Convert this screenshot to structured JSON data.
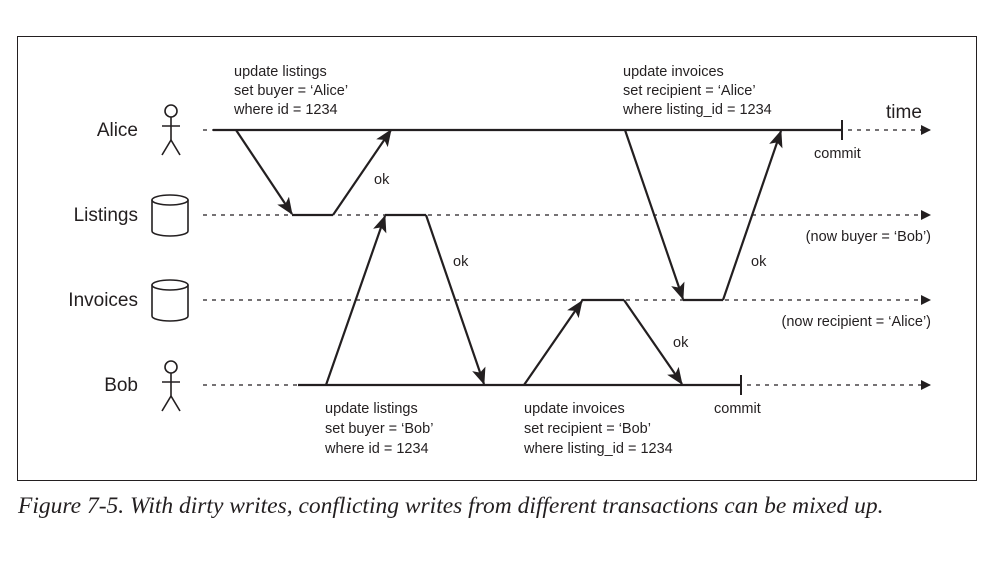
{
  "actors": {
    "alice": "Alice",
    "listings": "Listings",
    "invoices": "Invoices",
    "bob": "Bob"
  },
  "time_label": "time",
  "alice_listings_update": [
    "update listings",
    "set buyer = ‘Alice’",
    "where id = 1234"
  ],
  "alice_invoices_update": [
    "update invoices",
    "set recipient = ‘Alice’",
    "where listing_id = 1234"
  ],
  "bob_listings_update": [
    "update listings",
    "set buyer = ‘Bob’",
    "where id = 1234"
  ],
  "bob_invoices_update": [
    "update invoices",
    "set recipient = ‘Bob’",
    "where listing_id = 1234"
  ],
  "ok_label": "ok",
  "commit_label": "commit",
  "listings_state": "(now buyer = ‘Bob’)",
  "invoices_state": "(now recipient = ‘Alice’)",
  "caption": "Figure 7-5. With dirty writes, conflicting writes from different transactions can be mixed up.",
  "colors": {
    "ink": "#231f20",
    "background": "#ffffff"
  }
}
